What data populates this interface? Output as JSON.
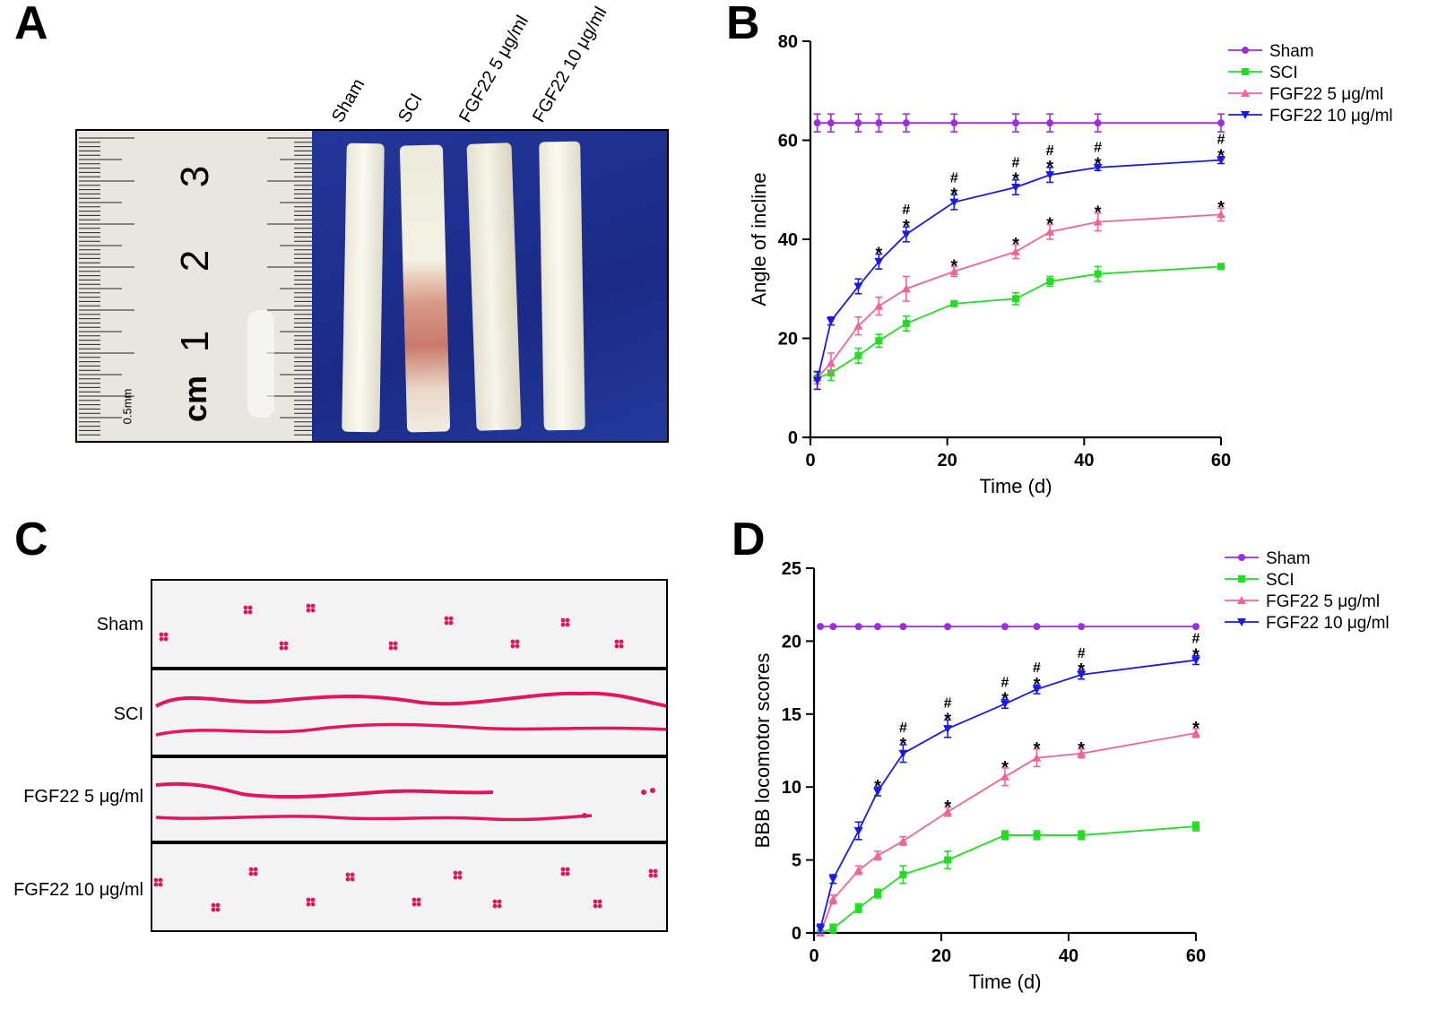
{
  "panels": {
    "a": "A",
    "b": "B",
    "c": "C",
    "d": "D"
  },
  "panel_a": {
    "group_labels": [
      "Sham",
      "SCI",
      "FGF22 5 μg/ml",
      "FGF22 10 μg/ml"
    ],
    "ruler_numbers": [
      "3",
      "2",
      "1"
    ],
    "ruler_unit": "cm",
    "ruler_scale": "0.5mm"
  },
  "panel_c": {
    "row_labels": [
      "Sham",
      "SCI",
      "FGF22 5 μg/ml",
      "FGF22 10 μg/ml"
    ]
  },
  "colors": {
    "sham": "#9b30d9",
    "sci": "#22dd22",
    "fgf5": "#ee6699",
    "fgf10": "#1a1ae6",
    "paw": "#e0185a"
  },
  "chart_data": [
    {
      "type": "line",
      "panel": "B",
      "xlabel": "Time (d)",
      "ylabel": "Angle of incline",
      "xlim": [
        0,
        60
      ],
      "ylim": [
        0,
        80
      ],
      "xticks": [
        0,
        20,
        40,
        60
      ],
      "yticks": [
        0,
        20,
        40,
        60,
        80
      ],
      "legend_position": "top-right",
      "x": [
        1,
        3,
        7,
        10,
        14,
        21,
        30,
        35,
        42,
        60
      ],
      "series": [
        {
          "name": "Sham",
          "marker": "circle",
          "values": [
            63.5,
            63.5,
            63.5,
            63.5,
            63.5,
            63.5,
            63.5,
            63.5,
            63.5,
            63.5
          ],
          "errors": [
            1.8,
            1.8,
            1.8,
            1.8,
            1.8,
            1.8,
            1.8,
            1.8,
            1.8,
            1.8
          ],
          "annotations": [
            "",
            "",
            "",
            "",
            "",
            "",
            "",
            "",
            "",
            ""
          ]
        },
        {
          "name": "SCI",
          "marker": "square",
          "values": [
            12,
            13,
            16.5,
            19.5,
            23,
            27,
            28,
            31.5,
            33,
            34.5
          ],
          "errors": [
            1.2,
            1.5,
            1.5,
            1.3,
            1.5,
            0.5,
            1.2,
            1,
            1.5,
            0.6
          ],
          "annotations": [
            "",
            "",
            "",
            "",
            "",
            "",
            "",
            "",
            "",
            ""
          ]
        },
        {
          "name": "FGF22 5 μg/ml",
          "marker": "triangle-up",
          "values": [
            12,
            15,
            22.5,
            26.5,
            30,
            33.5,
            37.5,
            41.5,
            43.5,
            45
          ],
          "errors": [
            1.2,
            2,
            1.8,
            1.8,
            2.5,
            1,
            1.4,
            1.5,
            1.8,
            1.3
          ],
          "annotations": [
            "",
            "",
            "",
            "",
            "",
            "*",
            "*",
            "*",
            "*",
            "*"
          ]
        },
        {
          "name": "FGF22 10 μg/ml",
          "marker": "triangle-down",
          "values": [
            11.5,
            23.5,
            30.5,
            35.5,
            41,
            47.5,
            50.5,
            53,
            54.5,
            56
          ],
          "errors": [
            1.8,
            0.8,
            1.5,
            1.5,
            1.5,
            1.5,
            1.5,
            1.5,
            0.6,
            0.7
          ],
          "annotations": [
            "",
            "",
            "",
            "*",
            "*#",
            "*#",
            "*#",
            "*#",
            "*#",
            "*#"
          ]
        }
      ]
    },
    {
      "type": "line",
      "panel": "D",
      "xlabel": "Time (d)",
      "ylabel": "BBB locomotor scores",
      "xlim": [
        0,
        60
      ],
      "ylim": [
        0,
        25
      ],
      "xticks": [
        0,
        20,
        40,
        60
      ],
      "yticks": [
        0,
        5,
        10,
        15,
        20,
        25
      ],
      "legend_position": "top-right",
      "x": [
        1,
        3,
        7,
        10,
        14,
        21,
        30,
        35,
        42,
        60
      ],
      "series": [
        {
          "name": "Sham",
          "marker": "circle",
          "values": [
            21,
            21,
            21,
            21,
            21,
            21,
            21,
            21,
            21,
            21
          ],
          "errors": [
            0,
            0,
            0,
            0,
            0,
            0,
            0,
            0,
            0,
            0
          ],
          "annotations": [
            "",
            "",
            "",
            "",
            "",
            "",
            "",
            "",
            "",
            ""
          ]
        },
        {
          "name": "SCI",
          "marker": "square",
          "values": [
            0,
            0.3,
            1.7,
            2.7,
            4,
            5,
            6.7,
            6.7,
            6.7,
            7.3
          ],
          "errors": [
            0,
            0.3,
            0.3,
            0.3,
            0.6,
            0.6,
            0.3,
            0.3,
            0.3,
            0.3
          ],
          "annotations": [
            "",
            "",
            "",
            "",
            "",
            "",
            "",
            "",
            "",
            ""
          ]
        },
        {
          "name": "FGF22 5 μg/ml",
          "marker": "triangle-up",
          "values": [
            0,
            2.3,
            4.3,
            5.3,
            6.3,
            8.3,
            10.7,
            12,
            12.3,
            13.7
          ],
          "errors": [
            0,
            0.3,
            0.3,
            0.3,
            0.3,
            0.3,
            0.6,
            0.6,
            0.3,
            0.3
          ],
          "annotations": [
            "",
            "",
            "",
            "",
            "",
            "*",
            "*",
            "*",
            "*",
            "*"
          ]
        },
        {
          "name": "FGF22 10 μg/ml",
          "marker": "triangle-down",
          "values": [
            0.3,
            3.7,
            7,
            9.7,
            12.3,
            14,
            15.7,
            16.7,
            17.7,
            18.7
          ],
          "errors": [
            0.3,
            0.3,
            0.6,
            0.3,
            0.6,
            0.6,
            0.3,
            0.3,
            0.3,
            0.3
          ],
          "annotations": [
            "",
            "",
            "",
            "*",
            "*#",
            "*#",
            "*#",
            "*#",
            "*#",
            "*#"
          ]
        }
      ]
    }
  ]
}
